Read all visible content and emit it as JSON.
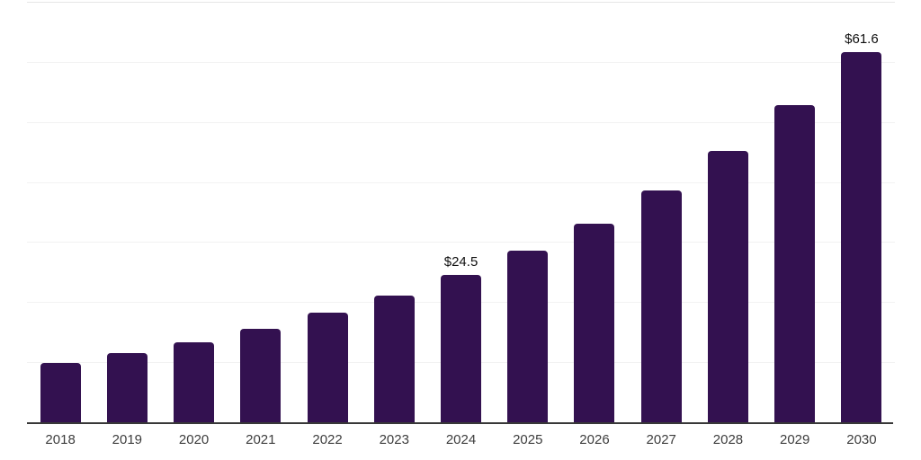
{
  "chart_data": {
    "type": "bar",
    "title": "",
    "xlabel": "",
    "ylabel": "",
    "categories": [
      "2018",
      "2019",
      "2020",
      "2021",
      "2022",
      "2023",
      "2024",
      "2025",
      "2026",
      "2027",
      "2028",
      "2029",
      "2030"
    ],
    "values": [
      9.9,
      11.5,
      13.3,
      15.6,
      18.3,
      21.1,
      24.5,
      28.6,
      33.1,
      38.6,
      45.2,
      52.8,
      61.6
    ],
    "data_labels": [
      "",
      "",
      "",
      "",
      "",
      "",
      "$24.5",
      "",
      "",
      "",
      "",
      "",
      "$61.6"
    ],
    "ylim": [
      0,
      70
    ],
    "grid_interval": 10,
    "grid": "horizontal-only",
    "legend_position": "none",
    "bar_color": "#331150"
  },
  "colors": {
    "background": "#ffffff",
    "bar": "#331150",
    "axis_line": "#383838",
    "gridline": "#f2f2f2",
    "top_gridline": "#e6e6e6",
    "tick_label": "#3d3d3d",
    "data_label": "#0f0f0f"
  }
}
